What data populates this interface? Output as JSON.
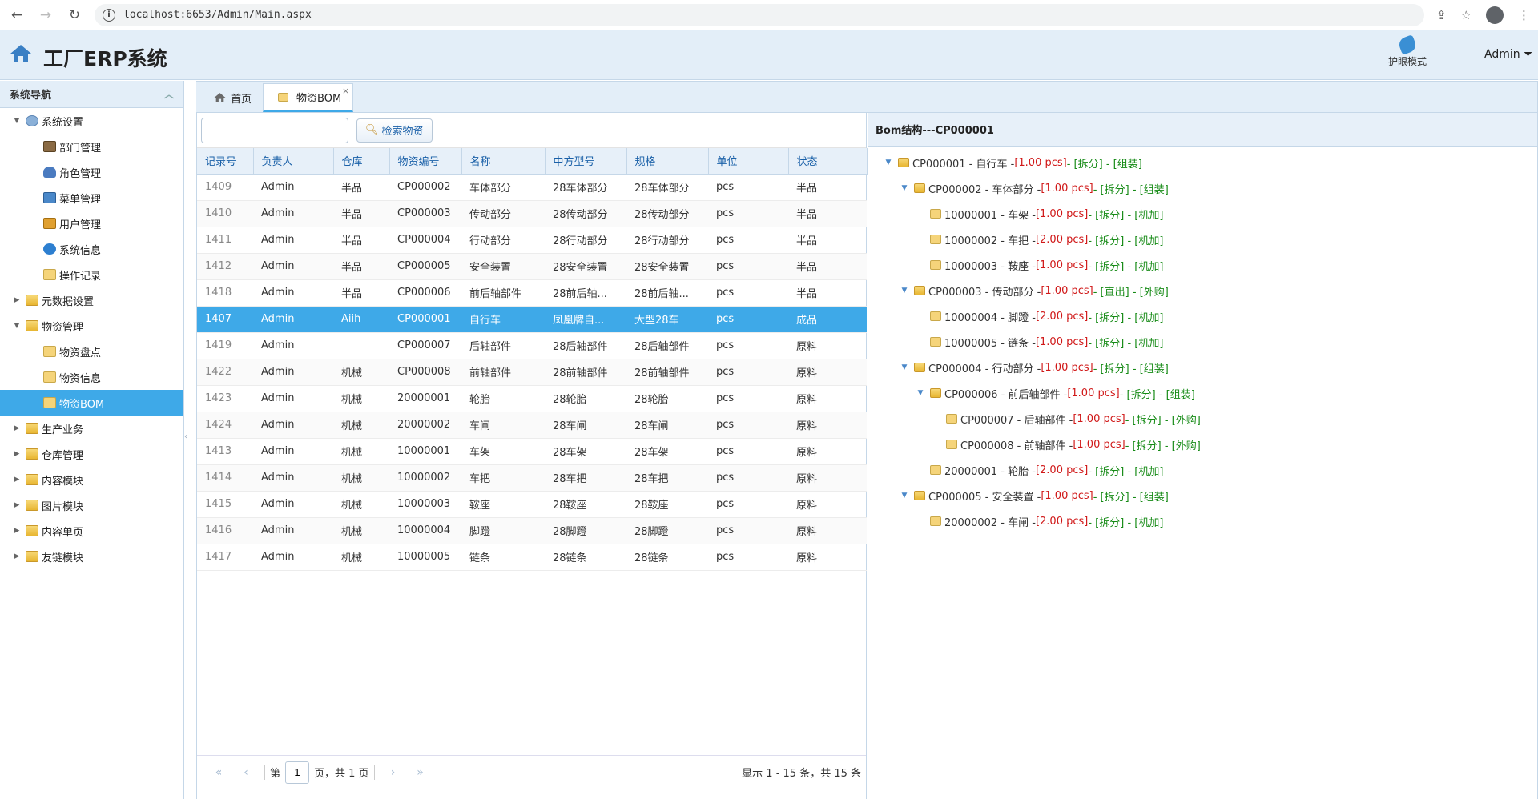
{
  "browser": {
    "url": "localhost:6653/Admin/Main.aspx"
  },
  "header": {
    "title": "工厂ERP系统",
    "eye_mode": "护眼模式",
    "user": "Admin ⏷"
  },
  "sidebar": {
    "title": "系统导航",
    "items": [
      {
        "label": "系统设置",
        "level": 0,
        "toggle": "▼",
        "icon": "sysic"
      },
      {
        "label": "部门管理",
        "level": 1,
        "toggle": "",
        "icon": "bookic"
      },
      {
        "label": "角色管理",
        "level": 1,
        "toggle": "",
        "icon": "personic"
      },
      {
        "label": "菜单管理",
        "level": 1,
        "toggle": "",
        "icon": "blueic"
      },
      {
        "label": "用户管理",
        "level": 1,
        "toggle": "",
        "icon": "editic"
      },
      {
        "label": "系统信息",
        "level": 1,
        "toggle": "",
        "icon": "infoic"
      },
      {
        "label": "操作记录",
        "level": 1,
        "toggle": "",
        "icon": "leafic"
      },
      {
        "label": "元数据设置",
        "level": 0,
        "toggle": "▶",
        "icon": "folder"
      },
      {
        "label": "物资管理",
        "level": 0,
        "toggle": "▼",
        "icon": "folder"
      },
      {
        "label": "物资盘点",
        "level": 1,
        "toggle": "",
        "icon": "leafic"
      },
      {
        "label": "物资信息",
        "level": 1,
        "toggle": "",
        "icon": "leafic"
      },
      {
        "label": "物资BOM",
        "level": 1,
        "toggle": "",
        "icon": "leafic",
        "selected": true
      },
      {
        "label": "生产业务",
        "level": 0,
        "toggle": "▶",
        "icon": "folder"
      },
      {
        "label": "仓库管理",
        "level": 0,
        "toggle": "▶",
        "icon": "folder"
      },
      {
        "label": "内容模块",
        "level": 0,
        "toggle": "▶",
        "icon": "folder"
      },
      {
        "label": "图片模块",
        "level": 0,
        "toggle": "▶",
        "icon": "folder"
      },
      {
        "label": "内容单页",
        "level": 0,
        "toggle": "▶",
        "icon": "folder"
      },
      {
        "label": "友链模块",
        "level": 0,
        "toggle": "▶",
        "icon": "folder"
      }
    ]
  },
  "tabs": [
    {
      "label": "首页",
      "active": false
    },
    {
      "label": "物资BOM",
      "active": true,
      "close": "×"
    }
  ],
  "toolbar": {
    "search_value": "",
    "search_button": "检索物资"
  },
  "grid": {
    "columns": [
      "记录号",
      "负责人",
      "仓库",
      "物资编号",
      "名称",
      "中方型号",
      "规格",
      "单位",
      "状态"
    ],
    "rows": [
      [
        "1409",
        "Admin",
        "半品",
        "CP000002",
        "车体部分",
        "28车体部分",
        "28车体部分",
        "pcs",
        "半品"
      ],
      [
        "1410",
        "Admin",
        "半品",
        "CP000003",
        "传动部分",
        "28传动部分",
        "28传动部分",
        "pcs",
        "半品"
      ],
      [
        "1411",
        "Admin",
        "半品",
        "CP000004",
        "行动部分",
        "28行动部分",
        "28行动部分",
        "pcs",
        "半品"
      ],
      [
        "1412",
        "Admin",
        "半品",
        "CP000005",
        "安全装置",
        "28安全装置",
        "28安全装置",
        "pcs",
        "半品"
      ],
      [
        "1418",
        "Admin",
        "半品",
        "CP000006",
        "前后轴部件",
        "28前后轴...",
        "28前后轴...",
        "pcs",
        "半品"
      ],
      [
        "1407",
        "Admin",
        "Aiih",
        "CP000001",
        "自行车",
        "凤凰牌自...",
        "大型28车",
        "pcs",
        "成品"
      ],
      [
        "1419",
        "Admin",
        "",
        "CP000007",
        "后轴部件",
        "28后轴部件",
        "28后轴部件",
        "pcs",
        "原料"
      ],
      [
        "1422",
        "Admin",
        "机械",
        "CP000008",
        "前轴部件",
        "28前轴部件",
        "28前轴部件",
        "pcs",
        "原料"
      ],
      [
        "1423",
        "Admin",
        "机械",
        "20000001",
        "轮胎",
        "28轮胎",
        "28轮胎",
        "pcs",
        "原料"
      ],
      [
        "1424",
        "Admin",
        "机械",
        "20000002",
        "车闸",
        "28车闸",
        "28车闸",
        "pcs",
        "原料"
      ],
      [
        "1413",
        "Admin",
        "机械",
        "10000001",
        "车架",
        "28车架",
        "28车架",
        "pcs",
        "原料"
      ],
      [
        "1414",
        "Admin",
        "机械",
        "10000002",
        "车把",
        "28车把",
        "28车把",
        "pcs",
        "原料"
      ],
      [
        "1415",
        "Admin",
        "机械",
        "10000003",
        "鞍座",
        "28鞍座",
        "28鞍座",
        "pcs",
        "原料"
      ],
      [
        "1416",
        "Admin",
        "机械",
        "10000004",
        "脚蹬",
        "28脚蹬",
        "28脚蹬",
        "pcs",
        "原料"
      ],
      [
        "1417",
        "Admin",
        "机械",
        "10000005",
        "链条",
        "28链条",
        "28链条",
        "pcs",
        "原料"
      ]
    ],
    "selected_index": 5
  },
  "pager": {
    "first": "«",
    "prev": "‹",
    "page_prefix": "第",
    "page": "1",
    "page_suffix": "页，共 1 页",
    "next": "›",
    "last": "»",
    "info": "显示 1 - 15 条，共 15 条"
  },
  "bom": {
    "title": "Bom结构---CP000001",
    "nodes": [
      {
        "level": 0,
        "toggle": "▼",
        "text": "CP000001 - 自行车 - ",
        "qty": "[1.00 pcs]",
        "tail": " - [拆分] - [组装]",
        "icon": "folder"
      },
      {
        "level": 1,
        "toggle": "▼",
        "text": "CP000002 - 车体部分 - ",
        "qty": "[1.00 pcs]",
        "tail": " - [拆分] - [组装]",
        "icon": "folder"
      },
      {
        "level": 2,
        "toggle": "",
        "text": "10000001 - 车架 - ",
        "qty": "[1.00 pcs]",
        "tail": " - [拆分] - [机加]",
        "icon": "leafic"
      },
      {
        "level": 2,
        "toggle": "",
        "text": "10000002 - 车把 - ",
        "qty": "[2.00 pcs]",
        "tail": " - [拆分] - [机加]",
        "icon": "leafic"
      },
      {
        "level": 2,
        "toggle": "",
        "text": "10000003 - 鞍座 - ",
        "qty": "[1.00 pcs]",
        "tail": " - [拆分] - [机加]",
        "icon": "leafic"
      },
      {
        "level": 1,
        "toggle": "▼",
        "text": "CP000003 - 传动部分 - ",
        "qty": "[1.00 pcs]",
        "tail": " - [直出] - [外购]",
        "icon": "folder"
      },
      {
        "level": 2,
        "toggle": "",
        "text": "10000004 - 脚蹬 - ",
        "qty": "[2.00 pcs]",
        "tail": " - [拆分] - [机加]",
        "icon": "leafic"
      },
      {
        "level": 2,
        "toggle": "",
        "text": "10000005 - 链条 - ",
        "qty": "[1.00 pcs]",
        "tail": " - [拆分] - [机加]",
        "icon": "leafic"
      },
      {
        "level": 1,
        "toggle": "▼",
        "text": "CP000004 - 行动部分 - ",
        "qty": "[1.00 pcs]",
        "tail": " - [拆分] - [组装]",
        "icon": "folder"
      },
      {
        "level": 2,
        "toggle": "▼",
        "text": "CP000006 - 前后轴部件 - ",
        "qty": "[1.00 pcs]",
        "tail": " - [拆分] - [组装]",
        "icon": "folder"
      },
      {
        "level": 3,
        "toggle": "",
        "text": "CP000007 - 后轴部件 - ",
        "qty": "[1.00 pcs]",
        "tail": " - [拆分] - [外购]",
        "icon": "leafic"
      },
      {
        "level": 3,
        "toggle": "",
        "text": "CP000008 - 前轴部件 - ",
        "qty": "[1.00 pcs]",
        "tail": " - [拆分] - [外购]",
        "icon": "leafic"
      },
      {
        "level": 2,
        "toggle": "",
        "text": "20000001 - 轮胎 - ",
        "qty": "[2.00 pcs]",
        "tail": " - [拆分] - [机加]",
        "icon": "leafic"
      },
      {
        "level": 1,
        "toggle": "▼",
        "text": "CP000005 - 安全装置 - ",
        "qty": "[1.00 pcs]",
        "tail": " - [拆分] - [组装]",
        "icon": "folder"
      },
      {
        "level": 2,
        "toggle": "",
        "text": "20000002 - 车闸 - ",
        "qty": "[2.00 pcs]",
        "tail": " - [拆分] - [机加]",
        "icon": "leafic"
      }
    ]
  }
}
